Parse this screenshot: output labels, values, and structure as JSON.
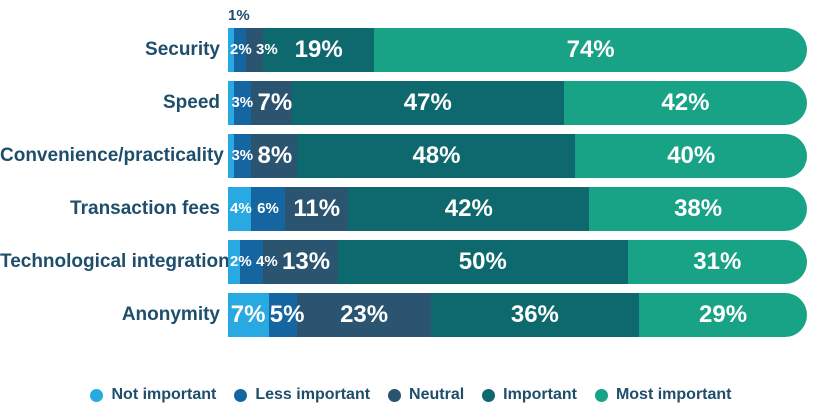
{
  "text_color": "#1E4E6B",
  "chart_data": {
    "type": "bar",
    "orientation": "horizontal-stacked",
    "unit": "%",
    "xlim": [
      0,
      100
    ],
    "grid": false,
    "legend_position": "bottom",
    "title": "",
    "xlabel": "",
    "ylabel": "",
    "categories": [
      "Security",
      "Speed",
      "Convenience/practicality",
      "Transaction fees",
      "Technological integration",
      "Anonymity"
    ],
    "series": [
      {
        "name": "Not important",
        "color": "#29A9E1",
        "values": [
          1,
          1,
          1,
          4,
          2,
          7
        ]
      },
      {
        "name": "Less important",
        "color": "#1566A0",
        "values": [
          2,
          3,
          3,
          6,
          4,
          5
        ]
      },
      {
        "name": "Neutral",
        "color": "#2A5470",
        "values": [
          3,
          7,
          8,
          11,
          13,
          23
        ]
      },
      {
        "name": "Important",
        "color": "#0E696E",
        "values": [
          19,
          47,
          48,
          42,
          50,
          36
        ]
      },
      {
        "name": "Most important",
        "color": "#18A286",
        "values": [
          74,
          42,
          40,
          38,
          31,
          29
        ]
      }
    ],
    "rows": [
      {
        "category": "Security",
        "segments": [
          {
            "series": "Not important",
            "value": 1,
            "label": "1%",
            "placement": "above",
            "size": "small"
          },
          {
            "series": "Less important",
            "value": 2,
            "label": "2%",
            "placement": "inside",
            "size": "small"
          },
          {
            "series": "Neutral",
            "value": 3,
            "label": "3%",
            "placement": "inside",
            "size": "small"
          },
          {
            "series": "Important",
            "value": 19,
            "label": "19%",
            "placement": "inside",
            "size": "large"
          },
          {
            "series": "Most important",
            "value": 74,
            "label": "74%",
            "placement": "inside",
            "size": "large"
          }
        ]
      },
      {
        "category": "Speed",
        "segments": [
          {
            "series": "Not important",
            "value": 1,
            "label": "",
            "placement": "none",
            "size": "small"
          },
          {
            "series": "Less important",
            "value": 3,
            "label": "3%",
            "placement": "inside",
            "size": "small"
          },
          {
            "series": "Neutral",
            "value": 7,
            "label": "7%",
            "placement": "inside",
            "size": "large"
          },
          {
            "series": "Important",
            "value": 47,
            "label": "47%",
            "placement": "inside",
            "size": "large"
          },
          {
            "series": "Most important",
            "value": 42,
            "label": "42%",
            "placement": "inside",
            "size": "large"
          }
        ]
      },
      {
        "category": "Convenience/practicality",
        "segments": [
          {
            "series": "Not important",
            "value": 1,
            "label": "",
            "placement": "none",
            "size": "small"
          },
          {
            "series": "Less important",
            "value": 3,
            "label": "3%",
            "placement": "inside",
            "size": "small"
          },
          {
            "series": "Neutral",
            "value": 8,
            "label": "8%",
            "placement": "inside",
            "size": "large"
          },
          {
            "series": "Important",
            "value": 48,
            "label": "48%",
            "placement": "inside",
            "size": "large"
          },
          {
            "series": "Most important",
            "value": 40,
            "label": "40%",
            "placement": "inside",
            "size": "large"
          }
        ]
      },
      {
        "category": "Transaction fees",
        "segments": [
          {
            "series": "Not important",
            "value": 4,
            "label": "4%",
            "placement": "inside",
            "size": "small"
          },
          {
            "series": "Less important",
            "value": 6,
            "label": "6%",
            "placement": "inside",
            "size": "small"
          },
          {
            "series": "Neutral",
            "value": 11,
            "label": "11%",
            "placement": "inside",
            "size": "large"
          },
          {
            "series": "Important",
            "value": 42,
            "label": "42%",
            "placement": "inside",
            "size": "large"
          },
          {
            "series": "Most important",
            "value": 38,
            "label": "38%",
            "placement": "inside",
            "size": "large"
          }
        ]
      },
      {
        "category": "Technological integration",
        "segments": [
          {
            "series": "Not important",
            "value": 2,
            "label": "2%",
            "placement": "inside",
            "size": "small"
          },
          {
            "series": "Less important",
            "value": 4,
            "label": "4%",
            "placement": "inside",
            "size": "small"
          },
          {
            "series": "Neutral",
            "value": 13,
            "label": "13%",
            "placement": "inside",
            "size": "large"
          },
          {
            "series": "Important",
            "value": 50,
            "label": "50%",
            "placement": "inside",
            "size": "large"
          },
          {
            "series": "Most important",
            "value": 31,
            "label": "31%",
            "placement": "inside",
            "size": "large"
          }
        ]
      },
      {
        "category": "Anonymity",
        "segments": [
          {
            "series": "Not important",
            "value": 7,
            "label": "7%",
            "placement": "inside",
            "size": "large"
          },
          {
            "series": "Less important",
            "value": 5,
            "label": "5%",
            "placement": "inside",
            "size": "large"
          },
          {
            "series": "Neutral",
            "value": 23,
            "label": "23%",
            "placement": "inside",
            "size": "large"
          },
          {
            "series": "Important",
            "value": 36,
            "label": "36%",
            "placement": "inside",
            "size": "large"
          },
          {
            "series": "Most important",
            "value": 29,
            "label": "29%",
            "placement": "inside",
            "size": "large"
          }
        ]
      }
    ],
    "legend": [
      "Not important",
      "Less important",
      "Neutral",
      "Important",
      "Most important"
    ]
  }
}
